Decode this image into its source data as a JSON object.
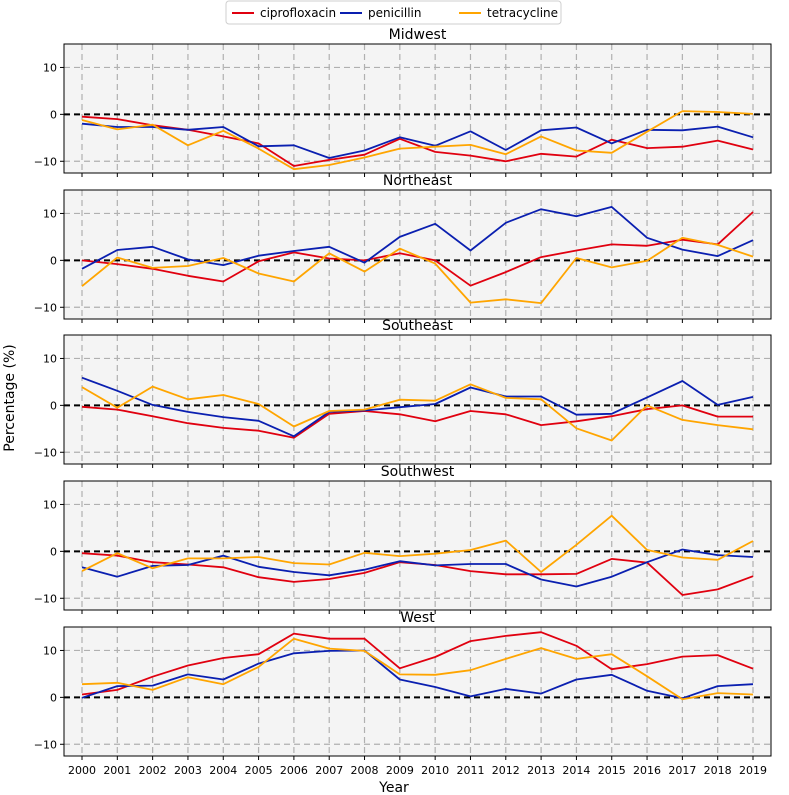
{
  "chart_data": {
    "type": "line",
    "ylabel": "Percentage (%)",
    "xlabel": "Year",
    "x": [
      "2000",
      "2001",
      "2002",
      "2003",
      "2004",
      "2005",
      "2006",
      "2007",
      "2008",
      "2009",
      "2010",
      "2011",
      "2012",
      "2013",
      "2014",
      "2015",
      "2016",
      "2017",
      "2018",
      "2019"
    ],
    "ylim": [
      -12.5,
      15
    ],
    "yticks": [
      -10,
      0,
      10
    ],
    "grid": true,
    "legend": {
      "placement": "top-center"
    },
    "series_meta": [
      {
        "name": "ciprofloxacin",
        "color": "#e0000f"
      },
      {
        "name": "penicillin",
        "color": "#0a1fb0"
      },
      {
        "name": "tetracycline",
        "color": "#ffa500"
      }
    ],
    "panels": [
      {
        "title": "Midwest",
        "series": [
          {
            "name": "ciprofloxacin",
            "values": [
              -0.5,
              -1,
              -2.3,
              -3.3,
              -4.7,
              -6.2,
              -11,
              -9.7,
              -8.6,
              -5.2,
              -8,
              -8.8,
              -10,
              -8.4,
              -9,
              -5.4,
              -7.2,
              -6.9,
              -5.6,
              -7.5
            ]
          },
          {
            "name": "penicillin",
            "values": [
              -2,
              -2.7,
              -2.7,
              -3.3,
              -2.7,
              -6.8,
              -6.6,
              -9.3,
              -7.7,
              -4.9,
              -6.7,
              -3.6,
              -7.6,
              -3.4,
              -2.8,
              -6.2,
              -3.3,
              -3.4,
              -2.6,
              -4.9
            ]
          },
          {
            "name": "tetracycline",
            "values": [
              -1.2,
              -3.2,
              -2.2,
              -6.6,
              -3.5,
              -7.3,
              -11.7,
              -10.8,
              -9.2,
              -7.3,
              -6.9,
              -6.5,
              -8.5,
              -4.7,
              -7.7,
              -8.2,
              -3.7,
              0.7,
              0.5,
              0.1
            ]
          }
        ]
      },
      {
        "title": "Northeast",
        "series": [
          {
            "name": "ciprofloxacin",
            "values": [
              0,
              -0.8,
              -1.8,
              -3.3,
              -4.5,
              -0.2,
              1.7,
              0.4,
              0,
              1.5,
              0,
              -5.4,
              -2.5,
              0.7,
              2.1,
              3.4,
              3.1,
              4.4,
              3.4,
              10.3
            ]
          },
          {
            "name": "penicillin",
            "values": [
              -1.8,
              2.2,
              2.9,
              0.2,
              -1,
              1,
              2,
              2.9,
              -0.5,
              5,
              7.8,
              2.1,
              8,
              10.9,
              9.4,
              11.4,
              4.8,
              2.3,
              0.9,
              4.3
            ]
          },
          {
            "name": "tetracycline",
            "values": [
              -5.5,
              0.6,
              -1.6,
              -1.2,
              0.5,
              -2.8,
              -4.5,
              1.5,
              -2.4,
              2.5,
              -0.7,
              -9,
              -8.3,
              -9.1,
              0.5,
              -1.5,
              -0.1,
              4.8,
              3.3,
              0.8
            ]
          }
        ]
      },
      {
        "title": "Southeast",
        "series": [
          {
            "name": "ciprofloxacin",
            "values": [
              -0.3,
              -0.9,
              -2.3,
              -3.8,
              -4.8,
              -5.4,
              -6.9,
              -1.8,
              -1.2,
              -1.9,
              -3.4,
              -1.2,
              -1.9,
              -4.2,
              -3.4,
              -2.3,
              -0.8,
              0,
              -2.4,
              -2.4
            ]
          },
          {
            "name": "penicillin",
            "values": [
              5.9,
              3.1,
              0.1,
              -1.4,
              -2.5,
              -3.3,
              -6.6,
              -1.4,
              -1.1,
              -0.4,
              0.3,
              3.8,
              1.9,
              1.9,
              -2,
              -1.8,
              1.7,
              5.2,
              0.1,
              1.8
            ]
          },
          {
            "name": "tetracycline",
            "values": [
              3.9,
              -0.5,
              4,
              1.3,
              2.2,
              0.3,
              -4.5,
              -1.2,
              -0.9,
              1.2,
              1,
              4.5,
              1.6,
              1.3,
              -4.9,
              -7.5,
              0,
              -3.1,
              -4.2,
              -5.1
            ]
          }
        ]
      },
      {
        "title": "Southwest",
        "series": [
          {
            "name": "ciprofloxacin",
            "values": [
              -0.4,
              -0.9,
              -2.3,
              -2.8,
              -3.4,
              -5.5,
              -6.5,
              -5.9,
              -4.6,
              -2.3,
              -2.9,
              -4.2,
              -4.9,
              -4.9,
              -4.8,
              -1.6,
              -2.4,
              -9.3,
              -8.1,
              -5.3
            ]
          },
          {
            "name": "penicillin",
            "values": [
              -3.4,
              -5.4,
              -3.1,
              -2.9,
              -0.9,
              -3.3,
              -4.4,
              -5.1,
              -3.9,
              -2.1,
              -3,
              -2.7,
              -2.7,
              -6,
              -7.5,
              -5.4,
              -2.3,
              0.4,
              -0.8,
              -1.2
            ]
          },
          {
            "name": "tetracycline",
            "values": [
              -4.2,
              -0.4,
              -3.6,
              -1.5,
              -1.5,
              -1.2,
              -2.5,
              -2.8,
              -0.3,
              -1,
              -0.5,
              0.3,
              2.3,
              -4.4,
              1.4,
              7.6,
              0.3,
              -1.3,
              -1.8,
              2.2
            ]
          }
        ]
      },
      {
        "title": "West",
        "series": [
          {
            "name": "ciprofloxacin",
            "values": [
              0.6,
              1.6,
              4.4,
              6.8,
              8.4,
              9.2,
              13.6,
              12.5,
              12.5,
              6.2,
              8.6,
              12,
              13.1,
              13.9,
              11,
              6,
              7.1,
              8.7,
              9,
              6.1
            ]
          },
          {
            "name": "penicillin",
            "values": [
              -0.1,
              2.4,
              2.5,
              4.9,
              3.8,
              7.2,
              9.4,
              9.9,
              10,
              3.8,
              2.2,
              0.2,
              1.8,
              0.8,
              3.8,
              4.8,
              1.4,
              -0.2,
              2.4,
              2.8
            ]
          },
          {
            "name": "tetracycline",
            "values": [
              2.8,
              3.1,
              1.6,
              4.3,
              2.8,
              6.5,
              12.5,
              10.4,
              9.9,
              4.9,
              4.8,
              5.8,
              8.2,
              10.5,
              8.2,
              9.2,
              4.5,
              -0.4,
              0.9,
              0.6
            ]
          }
        ]
      }
    ]
  }
}
